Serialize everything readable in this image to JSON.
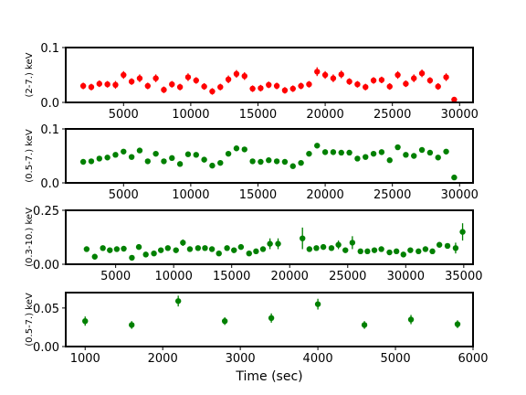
{
  "chart_data": [
    {
      "type": "scatter",
      "ylabel": "(2-7.) keV",
      "xlim": [
        700,
        31000
      ],
      "ylim": [
        0,
        0.1
      ],
      "xticks": [
        5000,
        10000,
        15000,
        20000,
        25000,
        30000
      ],
      "xtick_labels": [
        "5000",
        "10000",
        "15000",
        "20000",
        "25000",
        "30000"
      ],
      "yticks": [
        0,
        0.1
      ],
      "ytick_labels": [
        "0.0",
        "0.1"
      ],
      "color": "#ff0000",
      "series": [
        {
          "x": [
            2000,
            2600,
            3200,
            3800,
            4400,
            5000,
            5600,
            6200,
            6800,
            7400,
            8000,
            8600,
            9200,
            9800,
            10400,
            11000,
            11600,
            12200,
            12800,
            13400,
            14000,
            14600,
            15200,
            15800,
            16400,
            17000,
            17600,
            18200,
            18800,
            19400,
            20000,
            20600,
            21200,
            21800,
            22400,
            23000,
            23600,
            24200,
            24800,
            25400,
            26000,
            26600,
            27200,
            27800,
            28400,
            29000,
            29600
          ],
          "y": [
            0.03,
            0.028,
            0.034,
            0.033,
            0.032,
            0.05,
            0.038,
            0.044,
            0.03,
            0.044,
            0.023,
            0.033,
            0.028,
            0.046,
            0.04,
            0.029,
            0.02,
            0.028,
            0.042,
            0.052,
            0.048,
            0.025,
            0.026,
            0.032,
            0.03,
            0.022,
            0.025,
            0.03,
            0.033,
            0.056,
            0.05,
            0.044,
            0.051,
            0.038,
            0.033,
            0.028,
            0.04,
            0.041,
            0.029,
            0.05,
            0.034,
            0.044,
            0.053,
            0.04,
            0.029,
            0.046,
            0.005
          ],
          "yerr": [
            0.006,
            0.006,
            0.006,
            0.006,
            0.007,
            0.007,
            0.006,
            0.007,
            0.006,
            0.007,
            0.006,
            0.006,
            0.006,
            0.007,
            0.006,
            0.006,
            0.006,
            0.006,
            0.007,
            0.007,
            0.007,
            0.006,
            0.006,
            0.006,
            0.006,
            0.006,
            0.006,
            0.006,
            0.006,
            0.008,
            0.007,
            0.007,
            0.007,
            0.006,
            0.006,
            0.006,
            0.006,
            0.006,
            0.006,
            0.007,
            0.006,
            0.007,
            0.007,
            0.006,
            0.006,
            0.007,
            0.003
          ]
        }
      ]
    },
    {
      "type": "scatter",
      "ylabel": "(0.5-7.) keV",
      "xlim": [
        700,
        31000
      ],
      "ylim": [
        0,
        0.1
      ],
      "xticks": [
        5000,
        10000,
        15000,
        20000,
        25000,
        30000
      ],
      "xtick_labels": [
        "5000",
        "10000",
        "15000",
        "20000",
        "25000",
        "30000"
      ],
      "yticks": [
        0,
        0.1
      ],
      "ytick_labels": [
        "0.0",
        "0.1"
      ],
      "color": "#008000",
      "series": [
        {
          "x": [
            2000,
            2600,
            3200,
            3800,
            4400,
            5000,
            5600,
            6200,
            6800,
            7400,
            8000,
            8600,
            9200,
            9800,
            10400,
            11000,
            11600,
            12200,
            12800,
            13400,
            14000,
            14600,
            15200,
            15800,
            16400,
            17000,
            17600,
            18200,
            18800,
            19400,
            20000,
            20600,
            21200,
            21800,
            22400,
            23000,
            23600,
            24200,
            24800,
            25400,
            26000,
            26600,
            27200,
            27800,
            28400,
            29000,
            29600
          ],
          "y": [
            0.039,
            0.04,
            0.045,
            0.047,
            0.052,
            0.058,
            0.048,
            0.06,
            0.04,
            0.054,
            0.04,
            0.046,
            0.035,
            0.053,
            0.052,
            0.043,
            0.032,
            0.037,
            0.054,
            0.064,
            0.062,
            0.04,
            0.039,
            0.042,
            0.04,
            0.039,
            0.031,
            0.037,
            0.054,
            0.069,
            0.057,
            0.057,
            0.056,
            0.056,
            0.045,
            0.048,
            0.054,
            0.057,
            0.042,
            0.066,
            0.052,
            0.05,
            0.061,
            0.056,
            0.047,
            0.058,
            0.01
          ]
        }
      ]
    },
    {
      "type": "scatter",
      "ylabel": "(0.3-10.) keV",
      "xlim": [
        700,
        35800
      ],
      "ylim": [
        0,
        0.25
      ],
      "xticks": [
        5000,
        10000,
        15000,
        20000,
        25000,
        30000,
        35000
      ],
      "xtick_labels": [
        "5000",
        "10000",
        "15000",
        "20000",
        "25000",
        "30000",
        "35000"
      ],
      "yticks": [
        0,
        0.25
      ],
      "ytick_labels": [
        "0.00",
        "0.25"
      ],
      "color": "#008000",
      "series": [
        {
          "x": [
            2500,
            3200,
            3900,
            4500,
            5100,
            5700,
            6400,
            7000,
            7600,
            8300,
            8900,
            9500,
            10200,
            10800,
            11400,
            12100,
            12700,
            13300,
            13900,
            14600,
            15200,
            15800,
            16500,
            17100,
            17700,
            18300,
            19000,
            21100,
            21700,
            22300,
            22900,
            23600,
            24200,
            24800,
            25400,
            26100,
            26700,
            27300,
            27900,
            28600,
            29200,
            29800,
            30400,
            31100,
            31700,
            32300,
            32900,
            33600,
            34300,
            34900
          ],
          "y": [
            0.07,
            0.035,
            0.075,
            0.065,
            0.07,
            0.072,
            0.03,
            0.08,
            0.045,
            0.05,
            0.065,
            0.075,
            0.065,
            0.1,
            0.07,
            0.075,
            0.075,
            0.07,
            0.05,
            0.075,
            0.065,
            0.08,
            0.05,
            0.06,
            0.07,
            0.095,
            0.095,
            0.12,
            0.07,
            0.075,
            0.08,
            0.075,
            0.09,
            0.065,
            0.1,
            0.06,
            0.06,
            0.065,
            0.07,
            0.055,
            0.06,
            0.045,
            0.065,
            0.06,
            0.07,
            0.06,
            0.09,
            0.085,
            0.075,
            0.15
          ],
          "yerr": [
            0.012,
            0.012,
            0.012,
            0.012,
            0.012,
            0.012,
            0.012,
            0.012,
            0.012,
            0.012,
            0.012,
            0.012,
            0.012,
            0.015,
            0.012,
            0.012,
            0.012,
            0.012,
            0.012,
            0.012,
            0.012,
            0.012,
            0.012,
            0.012,
            0.012,
            0.025,
            0.025,
            0.05,
            0.012,
            0.012,
            0.012,
            0.012,
            0.02,
            0.012,
            0.03,
            0.012,
            0.012,
            0.012,
            0.012,
            0.012,
            0.012,
            0.012,
            0.012,
            0.012,
            0.012,
            0.012,
            0.012,
            0.012,
            0.025,
            0.04
          ]
        }
      ]
    },
    {
      "type": "scatter",
      "ylabel": "(0.5-7.) keV",
      "xlabel": "Time (sec)",
      "xlim": [
        750,
        6000
      ],
      "ylim": [
        0,
        0.07
      ],
      "xticks": [
        1000,
        2000,
        3000,
        4000,
        5000,
        6000
      ],
      "xtick_labels": [
        "1000",
        "2000",
        "3000",
        "4000",
        "5000",
        "6000"
      ],
      "yticks": [
        0,
        0.05
      ],
      "ytick_labels": [
        "0.00",
        "0.05"
      ],
      "color": "#008000",
      "series": [
        {
          "x": [
            1000,
            1600,
            2200,
            2800,
            3400,
            4000,
            4600,
            5200,
            5800
          ],
          "y": [
            0.033,
            0.028,
            0.059,
            0.033,
            0.037,
            0.055,
            0.028,
            0.035,
            0.029
          ],
          "yerr": [
            0.006,
            0.005,
            0.007,
            0.005,
            0.006,
            0.007,
            0.005,
            0.006,
            0.005
          ]
        }
      ]
    }
  ]
}
